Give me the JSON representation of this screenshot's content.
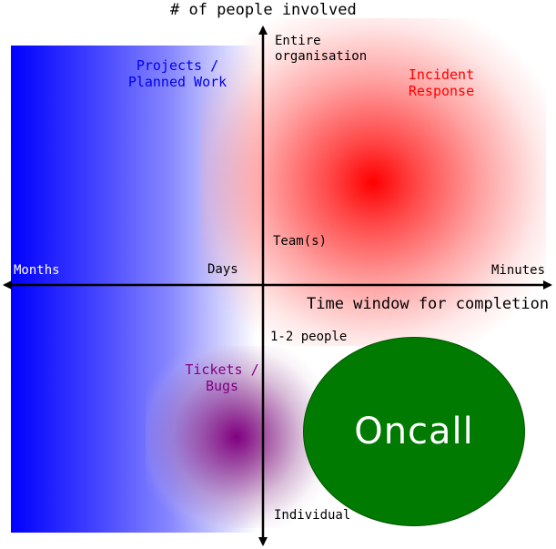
{
  "diagram": {
    "y_axis_title": "# of people involved",
    "x_axis_title": "Time window for completion",
    "x_ticks": {
      "left": "Months",
      "middle": "Days",
      "right": "Minutes"
    },
    "y_ticks": {
      "top": "Entire organisation",
      "upper_middle": "Team(s)",
      "lower_middle": "1-2 people",
      "bottom": "Individual"
    },
    "regions": {
      "projects": {
        "label": "Projects / Planned Work",
        "color": "#0000ff"
      },
      "incident": {
        "label": "Incident Response",
        "color": "#ff0000"
      },
      "tickets": {
        "label": "Tickets / Bugs",
        "color": "#800080"
      },
      "oncall": {
        "label": "Oncall",
        "color": "#007a00"
      }
    }
  }
}
